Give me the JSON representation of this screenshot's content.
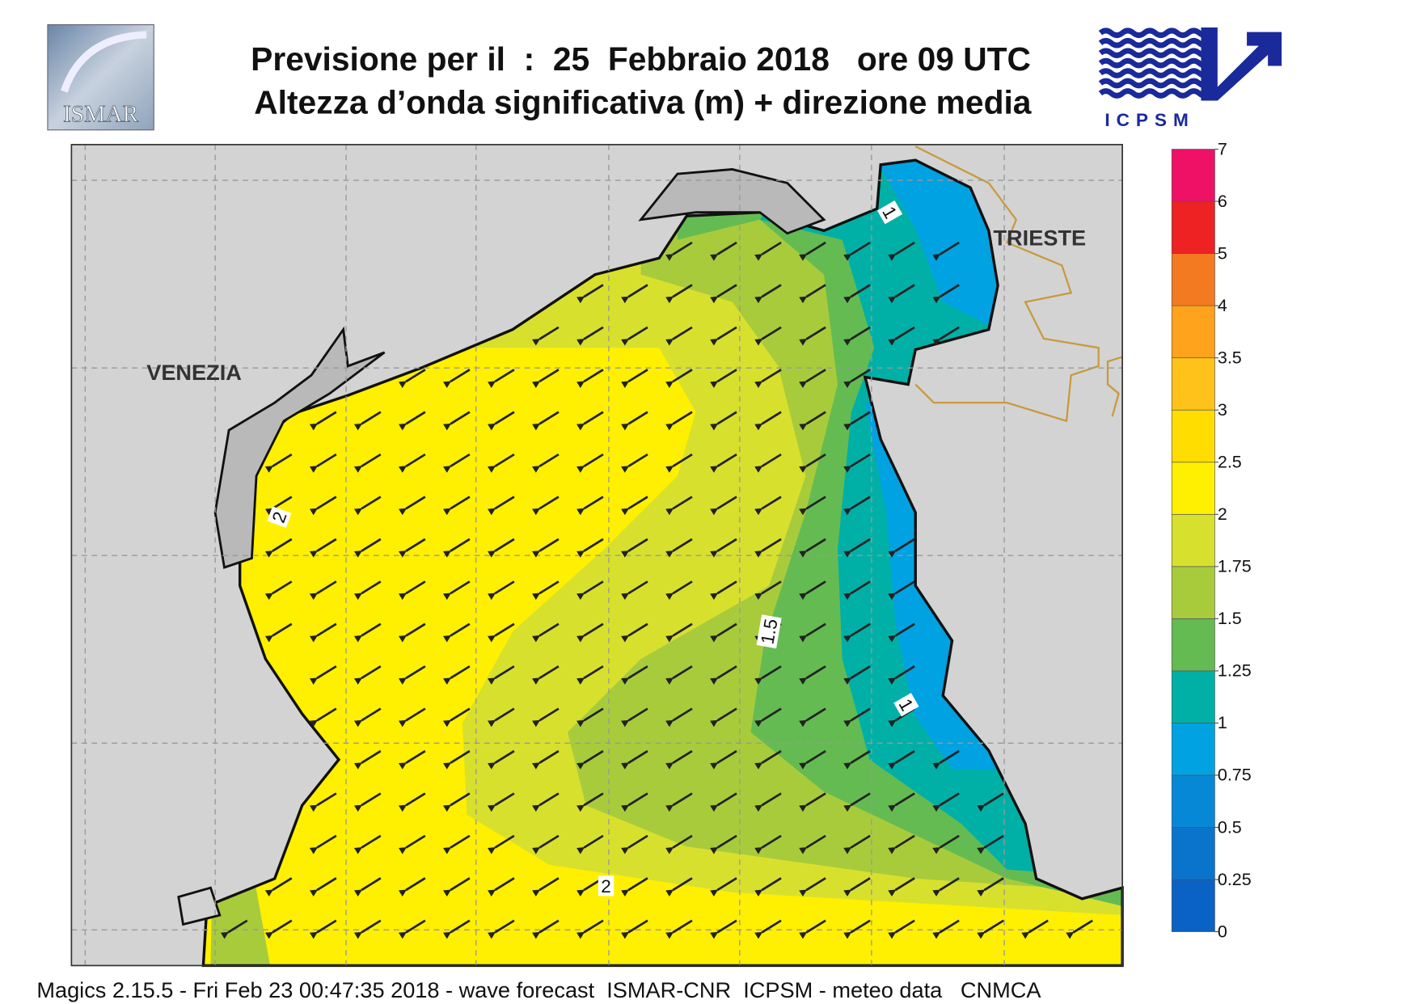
{
  "header": {
    "title_line1": "Previsione per il  :  25  Febbraio 2018   ore 09 UTC",
    "title_line2": "Altezza d’onda significativa (m) + direzione media"
  },
  "logos": {
    "left": "ISMAR",
    "right": "ICPSM"
  },
  "map": {
    "places": [
      "VENEZIA",
      "TRIESTE"
    ],
    "contour_labels": [
      2,
      1,
      1.5,
      1,
      2
    ]
  },
  "colorbar": {
    "ticks": [
      0,
      0.25,
      0.5,
      0.75,
      1,
      1.25,
      1.5,
      1.75,
      2,
      2.5,
      3,
      3.5,
      4,
      5,
      6,
      7
    ],
    "colors": [
      "#0a62c4",
      "#0a74cc",
      "#0688d6",
      "#00a2e2",
      "#00b0a6",
      "#64bb52",
      "#a8cb3c",
      "#d8e02e",
      "#ffef00",
      "#ffdd00",
      "#ffc21a",
      "#ffa21c",
      "#f47a22",
      "#ee2222",
      "#ee1166"
    ]
  },
  "footer": "Magics 2.15.5 - Fri Feb 23 00:47:35 2018 - wave forecast  ISMAR-CNR  ICPSM - meteo data   CNMCA"
}
